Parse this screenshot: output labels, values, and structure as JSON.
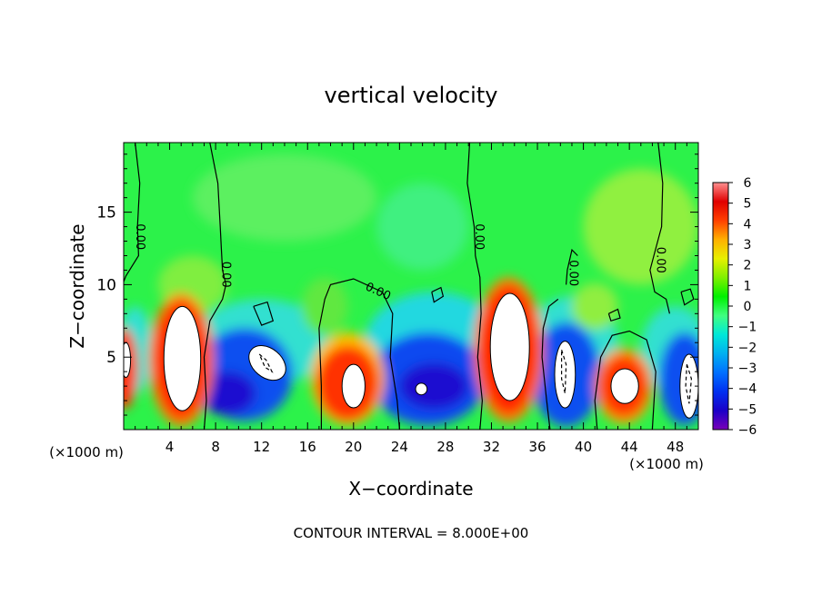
{
  "chart_data": {
    "type": "heatmap",
    "title": "vertical velocity",
    "xlabel": "X−coordinate",
    "ylabel": "Z−coordinate",
    "x_unit_label_left": "(×1000 m)",
    "x_unit_label_right": "(×1000 m)",
    "footer": "CONTOUR INTERVAL = 8.000E+00",
    "xlim": [
      0,
      50
    ],
    "ylim": [
      0,
      19.8
    ],
    "x_ticks": [
      "4",
      "8",
      "12",
      "16",
      "20",
      "24",
      "28",
      "32",
      "36",
      "40",
      "44",
      "48"
    ],
    "y_ticks": [
      "5",
      "10",
      "15"
    ],
    "colorbar": {
      "ticks": [
        "6",
        "5",
        "4",
        "3",
        "2",
        "1",
        "0",
        "−1",
        "−2",
        "−3",
        "−4",
        "−5",
        "−6"
      ],
      "range": [
        -6,
        6
      ],
      "colors": [
        "#7a00b8",
        "#1a00c8",
        "#0030f0",
        "#0070ff",
        "#00b0f0",
        "#00e8d8",
        "#40ff80",
        "#00f000",
        "#80f000",
        "#e8f000",
        "#ffb000",
        "#ff4000",
        "#e00000",
        "#ff9090"
      ]
    },
    "contour_labels": [
      "0.00",
      "0.00",
      "0.00",
      "0.00",
      "0.00",
      "0.00"
    ],
    "features": [
      {
        "kind": "updraft",
        "x": 5.0,
        "z": 4.5,
        "peak": 8
      },
      {
        "kind": "updraft",
        "x": 19.5,
        "z": 3.5,
        "peak": 7
      },
      {
        "kind": "updraft",
        "x": 33.5,
        "z": 5.5,
        "peak": 8
      },
      {
        "kind": "updraft",
        "x": 43.5,
        "z": 3.0,
        "peak": 7
      },
      {
        "kind": "updraft",
        "x": 0.2,
        "z": 4.0,
        "peak": 6
      },
      {
        "kind": "downdraft",
        "x": 12.0,
        "z": 4.0,
        "peak": -8
      },
      {
        "kind": "downdraft",
        "x": 9.0,
        "z": 2.5,
        "peak": -5
      },
      {
        "kind": "downdraft",
        "x": 26.0,
        "z": 3.0,
        "peak": -7
      },
      {
        "kind": "downdraft",
        "x": 38.0,
        "z": 3.5,
        "peak": -8
      },
      {
        "kind": "downdraft",
        "x": 49.0,
        "z": 3.0,
        "peak": -8
      }
    ]
  }
}
